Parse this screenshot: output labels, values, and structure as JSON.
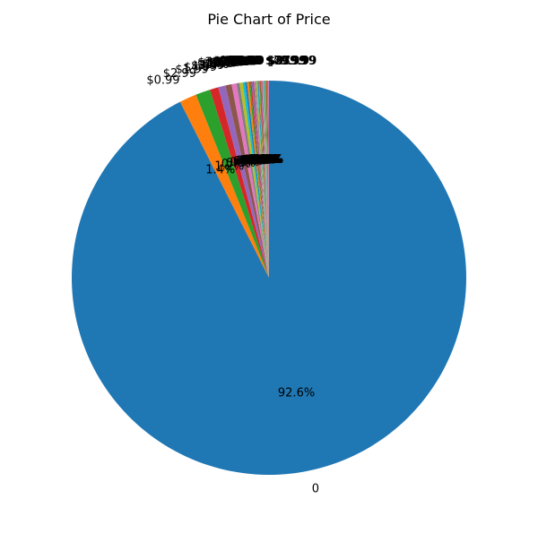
{
  "chart_data": {
    "type": "pie",
    "title": "Pie Chart of Price",
    "start_angle_deg": 90,
    "direction": "clockwise",
    "slices": [
      {
        "label": "0",
        "value": 92.6,
        "pct_label": "92.6%",
        "color": "#1f77b4"
      },
      {
        "label": "$0.99",
        "value": 1.4,
        "pct_label": "1.4%",
        "color": "#ff7f0e"
      },
      {
        "label": "$2.99",
        "value": 1.2,
        "pct_label": "1.2%",
        "color": "#2ca02c"
      },
      {
        "label": "$1.99",
        "value": 0.7,
        "pct_label": "0.7%",
        "color": "#d62728"
      },
      {
        "label": "$4.99",
        "value": 0.6,
        "pct_label": "0.6%",
        "color": "#9467bd"
      },
      {
        "label": "$3.99",
        "value": 0.5,
        "pct_label": "0.5%",
        "color": "#8c564b"
      },
      {
        "label": "$1.49",
        "value": 0.4,
        "pct_label": "0.4%",
        "color": "#e377c2"
      },
      {
        "label": "$5.99",
        "value": 0.25,
        "pct_label": "0.3%",
        "color": "#7f7f7f"
      },
      {
        "label": "$2.49",
        "value": 0.25,
        "pct_label": "0.2%",
        "color": "#bcbd22"
      },
      {
        "label": "$9.99",
        "value": 0.2,
        "pct_label": "0.2%",
        "color": "#17becf"
      },
      {
        "label": "$6.99",
        "value": 0.15,
        "pct_label": "0.1%",
        "color": "#1f77b4"
      },
      {
        "label": "$399.99",
        "value": 0.15,
        "pct_label": "0.1%",
        "color": "#ff7f0e"
      },
      {
        "label": "$14.99",
        "value": 0.12,
        "pct_label": "0.1%",
        "color": "#2ca02c"
      },
      {
        "label": "$4.49",
        "value": 0.1,
        "pct_label": "0.1%",
        "color": "#d62728"
      },
      {
        "label": "$3.49",
        "value": 0.1,
        "pct_label": "0.1%",
        "color": "#9467bd"
      },
      {
        "label": "$7.99",
        "value": 0.1,
        "pct_label": "0.1%",
        "color": "#8c564b"
      },
      {
        "label": "$29.99",
        "value": 0.08,
        "pct_label": "0.1%",
        "color": "#e377c2"
      },
      {
        "label": "$19.99",
        "value": 0.08,
        "pct_label": "0.1%",
        "color": "#7f7f7f"
      },
      {
        "label": "$24.99",
        "value": 0.08,
        "pct_label": "0.1%",
        "color": "#bcbd22"
      },
      {
        "label": "$8.99",
        "value": 0.08,
        "pct_label": "0.1%",
        "color": "#17becf"
      },
      {
        "label": "$5.49",
        "value": 0.06,
        "pct_label": "0.1%",
        "color": "#1f77b4"
      },
      {
        "label": "$6.49",
        "value": 0.06,
        "pct_label": "0.1%",
        "color": "#ff7f0e"
      },
      {
        "label": "$11.99",
        "value": 0.06,
        "pct_label": "0.1%",
        "color": "#2ca02c"
      },
      {
        "label": "$12.99",
        "value": 0.06,
        "pct_label": "0.1%",
        "color": "#d62728"
      },
      {
        "label": "$10.00",
        "value": 0.06,
        "pct_label": "0.1%",
        "color": "#9467bd"
      },
      {
        "label": "$16.99",
        "value": 0.05,
        "pct_label": "0.0%",
        "color": "#8c564b"
      },
      {
        "label": "$1.00",
        "value": 0.05,
        "pct_label": "0.0%",
        "color": "#e377c2"
      },
      {
        "label": "$2.00",
        "value": 0.05,
        "pct_label": "0.0%",
        "color": "#7f7f7f"
      },
      {
        "label": "$3.00",
        "value": 0.05,
        "pct_label": "0.0%",
        "color": "#bcbd22"
      },
      {
        "label": "$33.99",
        "value": 0.05,
        "pct_label": "0.0%",
        "color": "#17becf"
      },
      {
        "label": "$39.99",
        "value": 0.05,
        "pct_label": "0.0%",
        "color": "#1f77b4"
      },
      {
        "label": "$49.99",
        "value": 0.05,
        "pct_label": "0.0%",
        "color": "#ff7f0e"
      },
      {
        "label": "$79.99",
        "value": 0.05,
        "pct_label": "0.0%",
        "color": "#2ca02c"
      },
      {
        "label": "$89.99",
        "value": 0.05,
        "pct_label": "0.0%",
        "color": "#d62728"
      },
      {
        "label": "$299.99",
        "value": 0.05,
        "pct_label": "0.0%",
        "color": "#9467bd"
      },
      {
        "label": "$389.99",
        "value": 0.05,
        "pct_label": "0.0%",
        "color": "#8c564b"
      },
      {
        "label": "$379.99",
        "value": 0.05,
        "pct_label": "0.0%",
        "color": "#e377c2"
      }
    ]
  }
}
